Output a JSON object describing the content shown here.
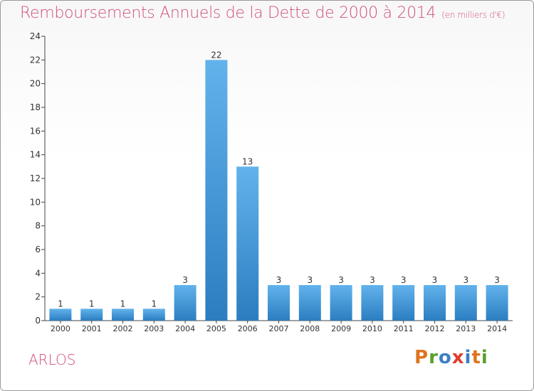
{
  "header": {
    "title": "Remboursements Annuels de la Dette de 2000 à 2014",
    "unit": "(en milliers d'€)"
  },
  "footer": {
    "town": "ARLOS",
    "logo": "Proxiti"
  },
  "colors": {
    "title": "#d2507a",
    "bar_top": "#62b3ec",
    "bar_bottom": "#2b7dc0",
    "logo_letters": [
      "#e0741e",
      "#5aa02c",
      "#3b7fc4",
      "#e03c2f",
      "#3b7fc4",
      "#e0741e",
      "#5aa02c"
    ]
  },
  "chart_data": {
    "type": "bar",
    "title": "Remboursements Annuels de la Dette de 2000 à 2014",
    "categories": [
      "2000",
      "2001",
      "2002",
      "2003",
      "2004",
      "2005",
      "2006",
      "2007",
      "2008",
      "2009",
      "2010",
      "2011",
      "2012",
      "2013",
      "2014"
    ],
    "values": [
      1,
      1,
      1,
      1,
      3,
      22,
      13,
      3,
      3,
      3,
      3,
      3,
      3,
      3,
      3
    ],
    "ylim": [
      0,
      24
    ],
    "yticks": [
      0,
      2,
      4,
      6,
      8,
      10,
      12,
      14,
      16,
      18,
      20,
      22,
      24
    ],
    "grid": false,
    "legend": "none"
  }
}
